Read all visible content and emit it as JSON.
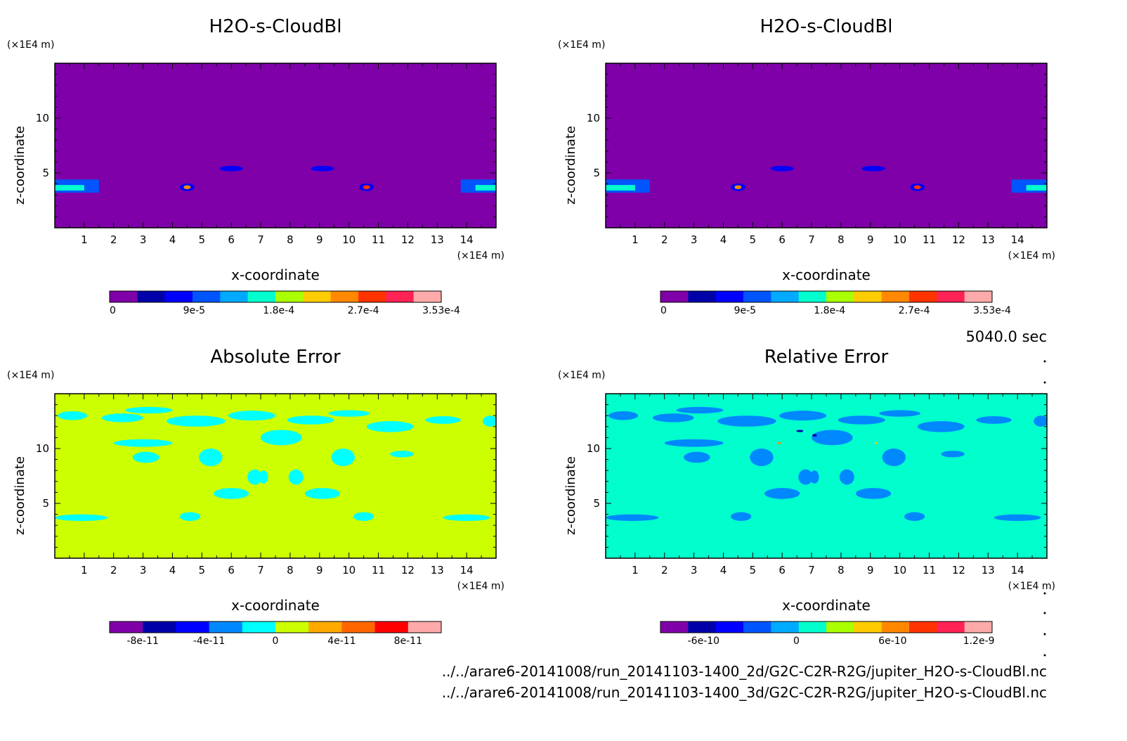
{
  "time_label": "5040.0 sec",
  "files": [
    "../../arare6-20141008/run_20141103-1400_2d/G2C-C2R-R2G/jupiter_H2O-s-CloudBl.nc",
    "../../arare6-20141008/run_20141103-1400_3d/G2C-C2R-R2G/jupiter_H2O-s-CloudBl.nc"
  ],
  "chart_data": [
    {
      "type": "heatmap",
      "title": "H2O-s-CloudBl",
      "xlabel": "x-coordinate",
      "ylabel": "z-coordinate",
      "x_unit": "(×1E4 m)",
      "y_unit": "(×1E4 m)",
      "xlim": [
        0,
        15
      ],
      "ylim": [
        0,
        15
      ],
      "x_ticks": [
        "1",
        "2",
        "3",
        "4",
        "5",
        "6",
        "7",
        "8",
        "9",
        "10",
        "11",
        "12",
        "13",
        "14"
      ],
      "y_ticks": [
        "5",
        "10"
      ],
      "background": "#7f00a8",
      "colorbar": {
        "colors": [
          "#7f00a8",
          "#0000a8",
          "#0000ff",
          "#0055ff",
          "#00aaff",
          "#00ffcc",
          "#aaff00",
          "#ffcc00",
          "#ff8800",
          "#ff3300",
          "#ff2255",
          "#ffaaaa"
        ],
        "labels": [
          "0",
          "9e-5",
          "1.8e-4",
          "2.7e-4",
          "3.53e-4"
        ],
        "label_positions": [
          0,
          0.255,
          0.51,
          0.765,
          1.0
        ]
      },
      "features": [
        {
          "shape": "band",
          "x": [
            0,
            1.5
          ],
          "y": [
            3.2,
            4.4
          ],
          "color": "#0055ff"
        },
        {
          "shape": "band",
          "x": [
            0,
            1.0
          ],
          "y": [
            3.4,
            3.9
          ],
          "color": "#00ffcc"
        },
        {
          "shape": "band",
          "x": [
            13.8,
            15
          ],
          "y": [
            3.2,
            4.4
          ],
          "color": "#0055ff"
        },
        {
          "shape": "band",
          "x": [
            14.3,
            15
          ],
          "y": [
            3.4,
            3.9
          ],
          "color": "#00ffcc"
        },
        {
          "shape": "blob",
          "cx": 4.5,
          "cz": 3.7,
          "rx": 0.25,
          "rz": 0.35,
          "color": "#0000ff"
        },
        {
          "shape": "blob",
          "cx": 4.5,
          "cz": 3.7,
          "rx": 0.12,
          "rz": 0.18,
          "color": "#ff8800"
        },
        {
          "shape": "blob",
          "cx": 10.6,
          "cz": 3.7,
          "rx": 0.25,
          "rz": 0.35,
          "color": "#0000ff"
        },
        {
          "shape": "blob",
          "cx": 10.6,
          "cz": 3.7,
          "rx": 0.12,
          "rz": 0.18,
          "color": "#ff3300"
        },
        {
          "shape": "blob",
          "cx": 6.0,
          "cz": 5.4,
          "rx": 0.4,
          "rz": 0.25,
          "color": "#0000ff"
        },
        {
          "shape": "blob",
          "cx": 9.1,
          "cz": 5.4,
          "rx": 0.4,
          "rz": 0.25,
          "color": "#0000ff"
        }
      ]
    },
    {
      "type": "heatmap",
      "title": "H2O-s-CloudBl",
      "xlabel": "x-coordinate",
      "ylabel": "z-coordinate",
      "x_unit": "(×1E4 m)",
      "y_unit": "(×1E4 m)",
      "xlim": [
        0,
        15
      ],
      "ylim": [
        0,
        15
      ],
      "x_ticks": [
        "1",
        "2",
        "3",
        "4",
        "5",
        "6",
        "7",
        "8",
        "9",
        "10",
        "11",
        "12",
        "13",
        "14"
      ],
      "y_ticks": [
        "5",
        "10"
      ],
      "background": "#7f00a8",
      "colorbar": {
        "colors": [
          "#7f00a8",
          "#0000a8",
          "#0000ff",
          "#0055ff",
          "#00aaff",
          "#00ffcc",
          "#aaff00",
          "#ffcc00",
          "#ff8800",
          "#ff3300",
          "#ff2255",
          "#ffaaaa"
        ],
        "labels": [
          "0",
          "9e-5",
          "1.8e-4",
          "2.7e-4",
          "3.53e-4"
        ],
        "label_positions": [
          0,
          0.255,
          0.51,
          0.765,
          1.0
        ]
      },
      "features": [
        {
          "shape": "band",
          "x": [
            0,
            1.5
          ],
          "y": [
            3.2,
            4.4
          ],
          "color": "#0055ff"
        },
        {
          "shape": "band",
          "x": [
            0,
            1.0
          ],
          "y": [
            3.4,
            3.9
          ],
          "color": "#00ffcc"
        },
        {
          "shape": "band",
          "x": [
            13.8,
            15
          ],
          "y": [
            3.2,
            4.4
          ],
          "color": "#0055ff"
        },
        {
          "shape": "band",
          "x": [
            14.3,
            15
          ],
          "y": [
            3.4,
            3.9
          ],
          "color": "#00ffcc"
        },
        {
          "shape": "blob",
          "cx": 4.5,
          "cz": 3.7,
          "rx": 0.25,
          "rz": 0.35,
          "color": "#0000ff"
        },
        {
          "shape": "blob",
          "cx": 4.5,
          "cz": 3.7,
          "rx": 0.12,
          "rz": 0.18,
          "color": "#ff8800"
        },
        {
          "shape": "blob",
          "cx": 10.6,
          "cz": 3.7,
          "rx": 0.25,
          "rz": 0.35,
          "color": "#0000ff"
        },
        {
          "shape": "blob",
          "cx": 10.6,
          "cz": 3.7,
          "rx": 0.12,
          "rz": 0.18,
          "color": "#ff3300"
        },
        {
          "shape": "blob",
          "cx": 6.0,
          "cz": 5.4,
          "rx": 0.4,
          "rz": 0.25,
          "color": "#0000ff"
        },
        {
          "shape": "blob",
          "cx": 9.1,
          "cz": 5.4,
          "rx": 0.4,
          "rz": 0.25,
          "color": "#0000ff"
        }
      ]
    },
    {
      "type": "heatmap",
      "title": "Absolute Error",
      "xlabel": "x-coordinate",
      "ylabel": "z-coordinate",
      "x_unit": "(×1E4 m)",
      "y_unit": "(×1E4 m)",
      "xlim": [
        0,
        15
      ],
      "ylim": [
        0,
        15
      ],
      "x_ticks": [
        "1",
        "2",
        "3",
        "4",
        "5",
        "6",
        "7",
        "8",
        "9",
        "10",
        "11",
        "12",
        "13",
        "14"
      ],
      "y_ticks": [
        "5",
        "10"
      ],
      "background": "#ccff00",
      "colorbar": {
        "colors": [
          "#7f00a8",
          "#0000a8",
          "#0000ff",
          "#0088ff",
          "#00ffff",
          "#ccff00",
          "#ffaa00",
          "#ff6600",
          "#ff0000",
          "#ffaaaa"
        ],
        "labels": [
          "-8e-11",
          "-4e-11",
          "0",
          "4e-11",
          "8e-11"
        ],
        "label_positions": [
          0.1,
          0.3,
          0.5,
          0.7,
          0.9
        ]
      },
      "features": [
        {
          "shape": "blob",
          "cx": 0.6,
          "cz": 13.0,
          "rx": 0.5,
          "rz": 0.4,
          "color": "#00ffff"
        },
        {
          "shape": "blob",
          "cx": 2.3,
          "cz": 12.8,
          "rx": 0.7,
          "rz": 0.4,
          "color": "#00ffff"
        },
        {
          "shape": "blob",
          "cx": 3.0,
          "cz": 10.5,
          "rx": 1.0,
          "rz": 0.35,
          "color": "#00ffff"
        },
        {
          "shape": "blob",
          "cx": 3.2,
          "cz": 13.5,
          "rx": 0.8,
          "rz": 0.3,
          "color": "#00ffff"
        },
        {
          "shape": "blob",
          "cx": 4.8,
          "cz": 12.5,
          "rx": 1.0,
          "rz": 0.5,
          "color": "#00ffff"
        },
        {
          "shape": "blob",
          "cx": 6.7,
          "cz": 13.0,
          "rx": 0.8,
          "rz": 0.45,
          "color": "#00ffff"
        },
        {
          "shape": "blob",
          "cx": 7.7,
          "cz": 11.0,
          "rx": 0.7,
          "rz": 0.7,
          "color": "#00ffff"
        },
        {
          "shape": "blob",
          "cx": 8.7,
          "cz": 12.6,
          "rx": 0.8,
          "rz": 0.4,
          "color": "#00ffff"
        },
        {
          "shape": "blob",
          "cx": 10.0,
          "cz": 13.2,
          "rx": 0.7,
          "rz": 0.3,
          "color": "#00ffff"
        },
        {
          "shape": "blob",
          "cx": 11.4,
          "cz": 12.0,
          "rx": 0.8,
          "rz": 0.5,
          "color": "#00ffff"
        },
        {
          "shape": "blob",
          "cx": 13.2,
          "cz": 12.6,
          "rx": 0.6,
          "rz": 0.35,
          "color": "#00ffff"
        },
        {
          "shape": "blob",
          "cx": 14.8,
          "cz": 12.5,
          "rx": 0.25,
          "rz": 0.5,
          "color": "#00ffff"
        },
        {
          "shape": "blob",
          "cx": 3.1,
          "cz": 9.2,
          "rx": 0.45,
          "rz": 0.5,
          "color": "#00ffff"
        },
        {
          "shape": "blob",
          "cx": 5.3,
          "cz": 9.2,
          "rx": 0.4,
          "rz": 0.8,
          "color": "#00ffff"
        },
        {
          "shape": "blob",
          "cx": 9.8,
          "cz": 9.2,
          "rx": 0.4,
          "rz": 0.8,
          "color": "#00ffff"
        },
        {
          "shape": "blob",
          "cx": 11.8,
          "cz": 9.5,
          "rx": 0.4,
          "rz": 0.3,
          "color": "#00ffff"
        },
        {
          "shape": "blob",
          "cx": 6.8,
          "cz": 7.4,
          "rx": 0.25,
          "rz": 0.7,
          "color": "#00ffff"
        },
        {
          "shape": "blob",
          "cx": 7.1,
          "cz": 7.4,
          "rx": 0.15,
          "rz": 0.6,
          "color": "#00ffff"
        },
        {
          "shape": "blob",
          "cx": 8.2,
          "cz": 7.4,
          "rx": 0.25,
          "rz": 0.7,
          "color": "#00ffff"
        },
        {
          "shape": "blob",
          "cx": 6.0,
          "cz": 5.9,
          "rx": 0.6,
          "rz": 0.5,
          "color": "#00ffff"
        },
        {
          "shape": "blob",
          "cx": 9.1,
          "cz": 5.9,
          "rx": 0.6,
          "rz": 0.5,
          "color": "#00ffff"
        },
        {
          "shape": "blob",
          "cx": 4.6,
          "cz": 3.8,
          "rx": 0.35,
          "rz": 0.4,
          "color": "#00ffff"
        },
        {
          "shape": "blob",
          "cx": 10.5,
          "cz": 3.8,
          "rx": 0.35,
          "rz": 0.4,
          "color": "#00ffff"
        },
        {
          "shape": "blob",
          "cx": 0.9,
          "cz": 3.7,
          "rx": 0.9,
          "rz": 0.3,
          "color": "#00ffff"
        },
        {
          "shape": "blob",
          "cx": 14.0,
          "cz": 3.7,
          "rx": 0.8,
          "rz": 0.3,
          "color": "#00ffff"
        }
      ]
    },
    {
      "type": "heatmap",
      "title": "Relative Error",
      "xlabel": "x-coordinate",
      "ylabel": "z-coordinate",
      "x_unit": "(×1E4 m)",
      "y_unit": "(×1E4 m)",
      "xlim": [
        0,
        15
      ],
      "ylim": [
        0,
        15
      ],
      "x_ticks": [
        "1",
        "2",
        "3",
        "4",
        "5",
        "6",
        "7",
        "8",
        "9",
        "10",
        "11",
        "12",
        "13",
        "14"
      ],
      "y_ticks": [
        "5",
        "10"
      ],
      "background": "#00ffcc",
      "colorbar": {
        "colors": [
          "#7f00a8",
          "#0000a8",
          "#0000ff",
          "#0055ff",
          "#00aaff",
          "#00ffcc",
          "#aaff00",
          "#ffcc00",
          "#ff8800",
          "#ff3300",
          "#ff2255",
          "#ffaaaa"
        ],
        "labels": [
          "-6e-10",
          "0",
          "6e-10",
          "1.2e-9"
        ],
        "label_positions": [
          0.13,
          0.41,
          0.7,
          0.96
        ]
      },
      "features": [
        {
          "shape": "blob",
          "cx": 0.6,
          "cz": 13.0,
          "rx": 0.5,
          "rz": 0.4,
          "color": "#0088ff"
        },
        {
          "shape": "blob",
          "cx": 2.3,
          "cz": 12.8,
          "rx": 0.7,
          "rz": 0.4,
          "color": "#0088ff"
        },
        {
          "shape": "blob",
          "cx": 3.0,
          "cz": 10.5,
          "rx": 1.0,
          "rz": 0.35,
          "color": "#0088ff"
        },
        {
          "shape": "blob",
          "cx": 3.2,
          "cz": 13.5,
          "rx": 0.8,
          "rz": 0.3,
          "color": "#0088ff"
        },
        {
          "shape": "blob",
          "cx": 4.8,
          "cz": 12.5,
          "rx": 1.0,
          "rz": 0.5,
          "color": "#0088ff"
        },
        {
          "shape": "blob",
          "cx": 6.7,
          "cz": 13.0,
          "rx": 0.8,
          "rz": 0.45,
          "color": "#0088ff"
        },
        {
          "shape": "blob",
          "cx": 7.7,
          "cz": 11.0,
          "rx": 0.7,
          "rz": 0.7,
          "color": "#0088ff"
        },
        {
          "shape": "blob",
          "cx": 8.7,
          "cz": 12.6,
          "rx": 0.8,
          "rz": 0.4,
          "color": "#0088ff"
        },
        {
          "shape": "blob",
          "cx": 10.0,
          "cz": 13.2,
          "rx": 0.7,
          "rz": 0.3,
          "color": "#0088ff"
        },
        {
          "shape": "blob",
          "cx": 11.4,
          "cz": 12.0,
          "rx": 0.8,
          "rz": 0.5,
          "color": "#0088ff"
        },
        {
          "shape": "blob",
          "cx": 13.2,
          "cz": 12.6,
          "rx": 0.6,
          "rz": 0.35,
          "color": "#0088ff"
        },
        {
          "shape": "blob",
          "cx": 14.8,
          "cz": 12.5,
          "rx": 0.25,
          "rz": 0.5,
          "color": "#0088ff"
        },
        {
          "shape": "blob",
          "cx": 3.1,
          "cz": 9.2,
          "rx": 0.45,
          "rz": 0.5,
          "color": "#0088ff"
        },
        {
          "shape": "blob",
          "cx": 5.3,
          "cz": 9.2,
          "rx": 0.4,
          "rz": 0.8,
          "color": "#0088ff"
        },
        {
          "shape": "blob",
          "cx": 9.8,
          "cz": 9.2,
          "rx": 0.4,
          "rz": 0.8,
          "color": "#0088ff"
        },
        {
          "shape": "blob",
          "cx": 11.8,
          "cz": 9.5,
          "rx": 0.4,
          "rz": 0.3,
          "color": "#0088ff"
        },
        {
          "shape": "blob",
          "cx": 6.8,
          "cz": 7.4,
          "rx": 0.25,
          "rz": 0.7,
          "color": "#0088ff"
        },
        {
          "shape": "blob",
          "cx": 7.1,
          "cz": 7.4,
          "rx": 0.15,
          "rz": 0.6,
          "color": "#0088ff"
        },
        {
          "shape": "blob",
          "cx": 8.2,
          "cz": 7.4,
          "rx": 0.25,
          "rz": 0.7,
          "color": "#0088ff"
        },
        {
          "shape": "blob",
          "cx": 6.0,
          "cz": 5.9,
          "rx": 0.6,
          "rz": 0.5,
          "color": "#0088ff"
        },
        {
          "shape": "blob",
          "cx": 9.1,
          "cz": 5.9,
          "rx": 0.6,
          "rz": 0.5,
          "color": "#0088ff"
        },
        {
          "shape": "blob",
          "cx": 4.6,
          "cz": 3.8,
          "rx": 0.35,
          "rz": 0.4,
          "color": "#0088ff"
        },
        {
          "shape": "blob",
          "cx": 10.5,
          "cz": 3.8,
          "rx": 0.35,
          "rz": 0.4,
          "color": "#0088ff"
        },
        {
          "shape": "blob",
          "cx": 0.9,
          "cz": 3.7,
          "rx": 0.9,
          "rz": 0.3,
          "color": "#0088ff"
        },
        {
          "shape": "blob",
          "cx": 14.0,
          "cz": 3.7,
          "rx": 0.8,
          "rz": 0.3,
          "color": "#0088ff"
        },
        {
          "shape": "blob",
          "cx": 6.6,
          "cz": 11.6,
          "rx": 0.12,
          "rz": 0.1,
          "color": "#0000a8"
        },
        {
          "shape": "blob",
          "cx": 7.1,
          "cz": 11.2,
          "rx": 0.08,
          "rz": 0.12,
          "color": "#0000a8"
        },
        {
          "shape": "blob",
          "cx": 5.9,
          "cz": 10.5,
          "rx": 0.06,
          "rz": 0.1,
          "color": "#ff8800"
        },
        {
          "shape": "blob",
          "cx": 9.2,
          "cz": 10.5,
          "rx": 0.05,
          "rz": 0.08,
          "color": "#ffcc00"
        }
      ]
    }
  ]
}
